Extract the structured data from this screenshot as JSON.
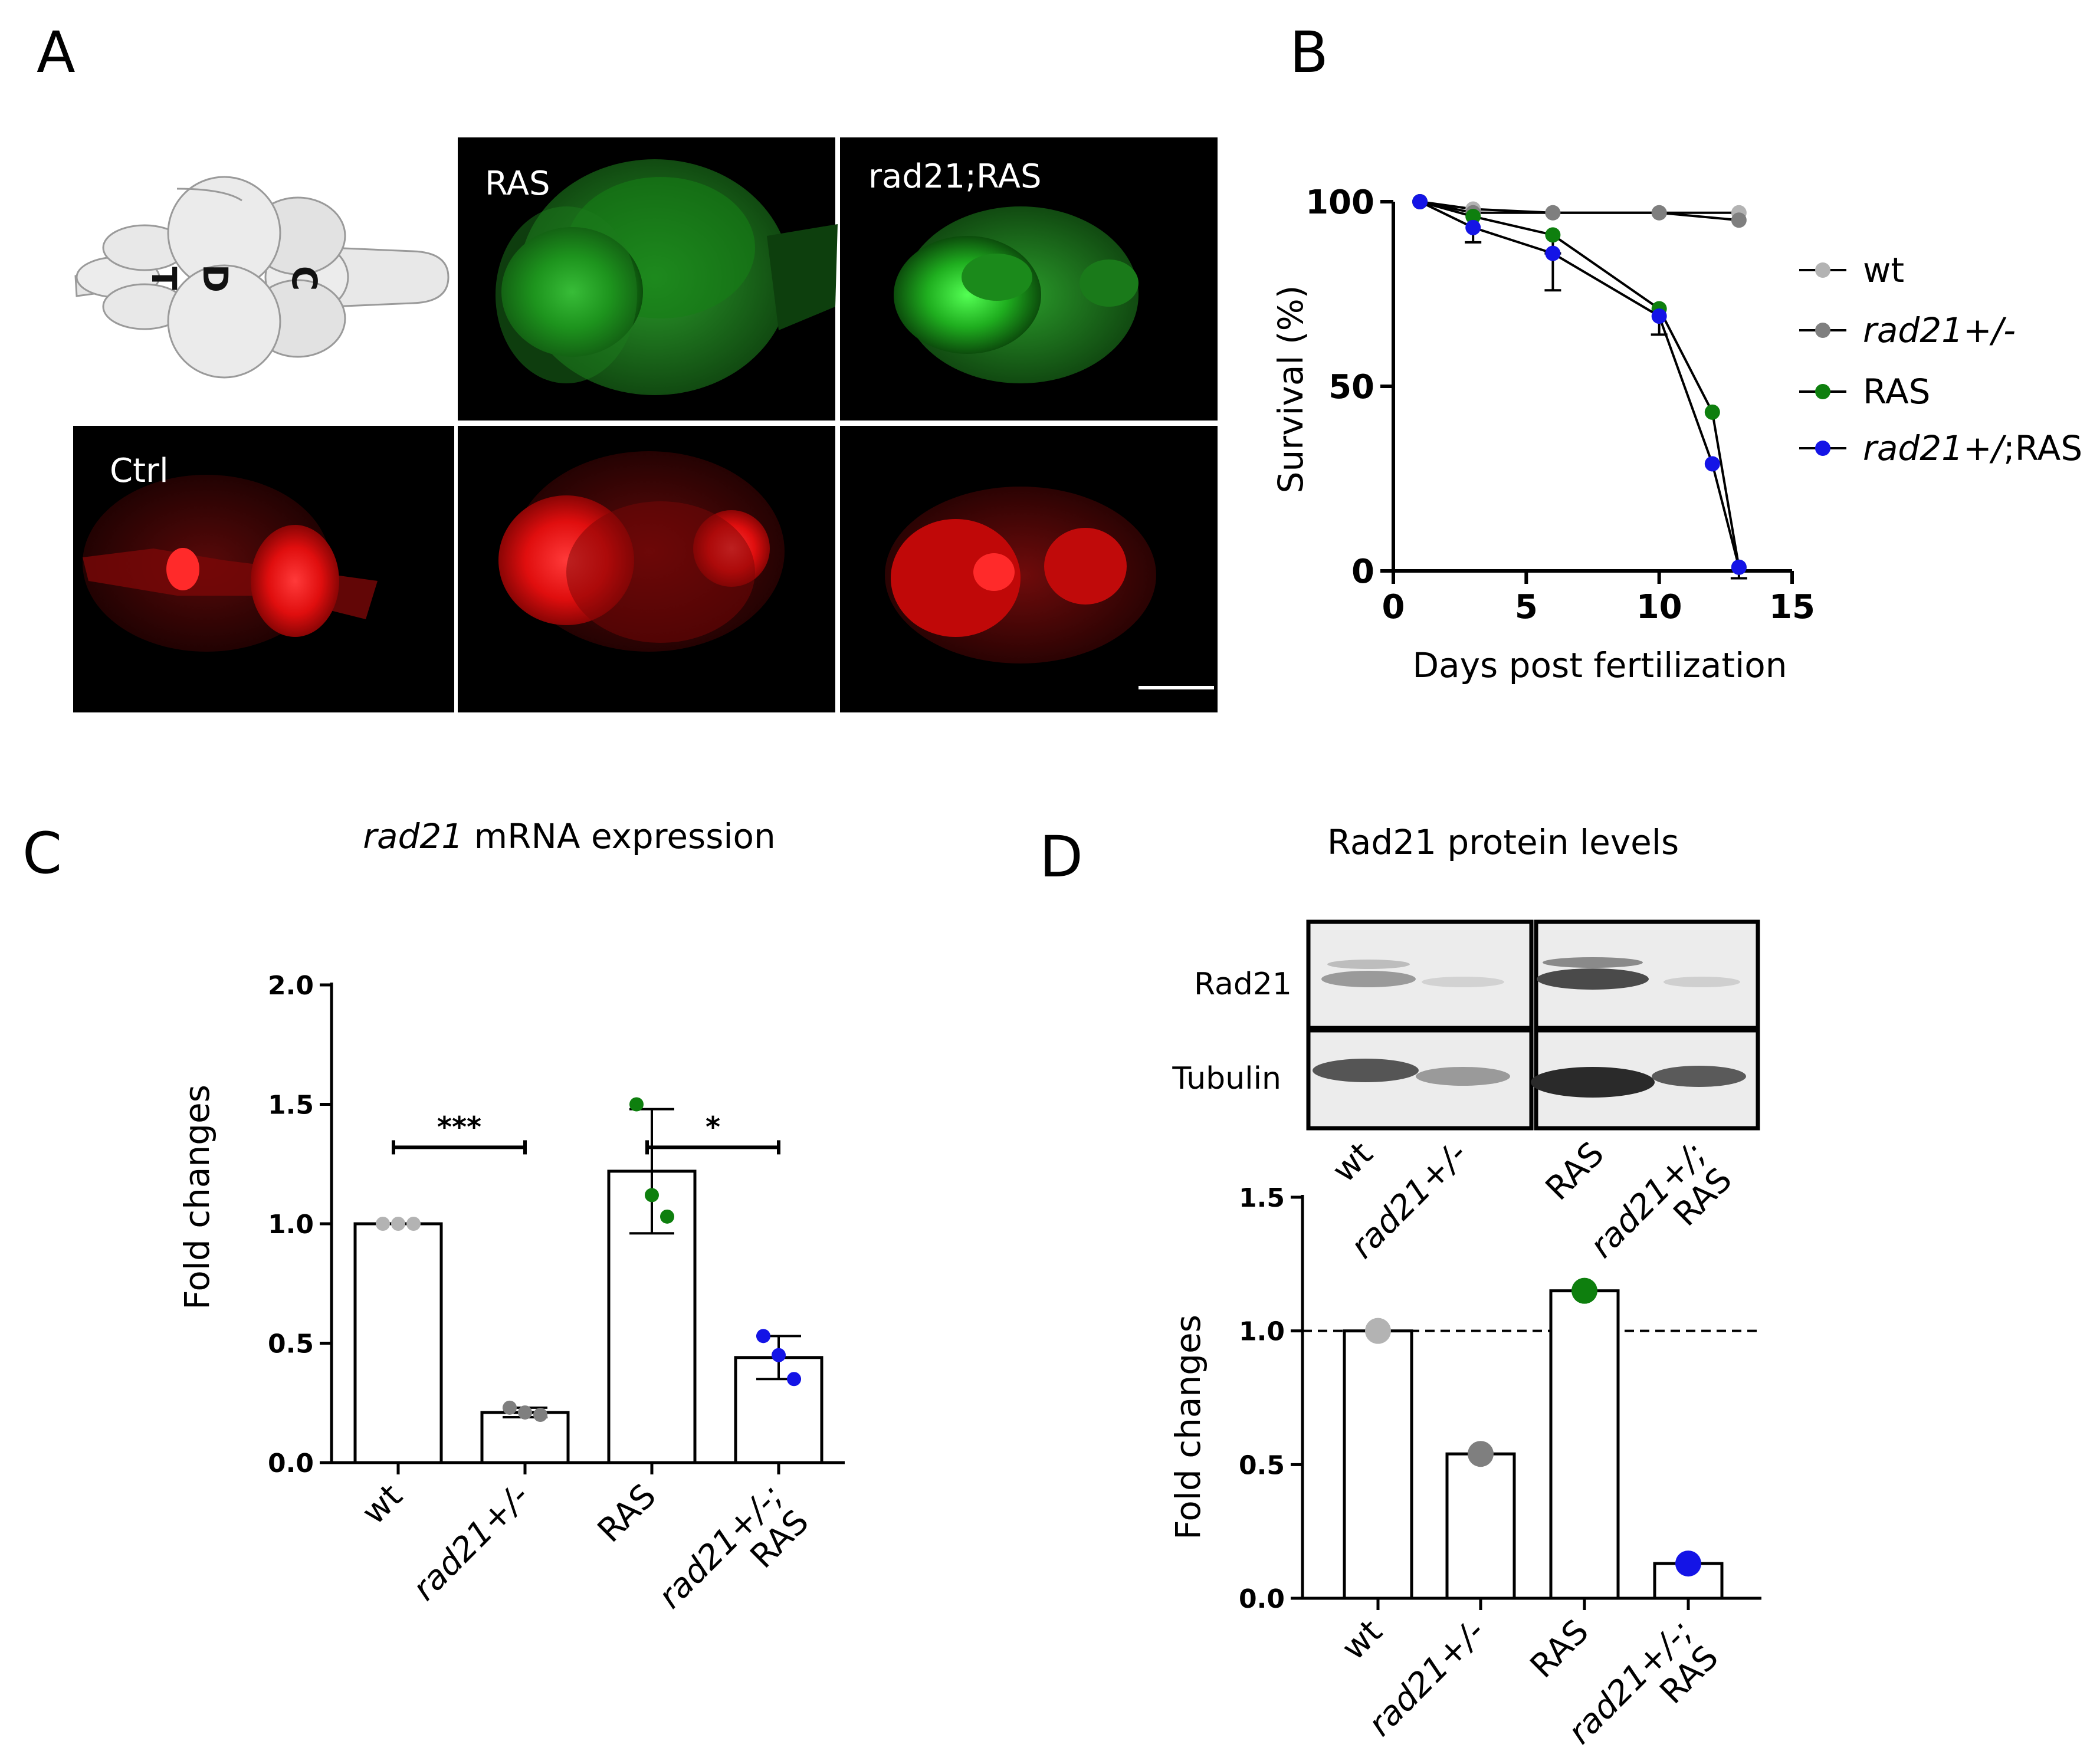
{
  "panels": {
    "a": {
      "letter": "A",
      "schematic_labels": [
        "T",
        "D",
        "C"
      ],
      "images": [
        "RAS",
        "rad21;RAS",
        "Ctrl"
      ]
    },
    "b": {
      "letter": "B"
    },
    "c": {
      "letter": "C",
      "title_italic": "rad21",
      "title_rest": " mRNA expression"
    },
    "d": {
      "letter": "D",
      "title": "Rad21 protein levels",
      "blot_labels": [
        "Rad21",
        "Tubulin"
      ]
    }
  },
  "colors": {
    "wt": "#b3b3b3",
    "rad21_het": "#7f7f7f",
    "ras": "#0e7f0e",
    "rad21_ras": "#1414e6",
    "green_fluor": "#2fbf2f",
    "red_fluor": "#e01010"
  },
  "chart_data": [
    {
      "panel": "B",
      "type": "line",
      "xlabel": "Days post fertilization",
      "ylabel": "Survival (%)",
      "xlim": [
        0,
        15
      ],
      "ylim": [
        0,
        100
      ],
      "xticks": [
        "0",
        "5",
        "10",
        "15"
      ],
      "yticks": [
        "0",
        "50",
        "100"
      ],
      "legend_position": "right",
      "series": [
        {
          "name": "wt",
          "color": "#b3b3b3",
          "x": [
            1,
            3,
            6,
            10,
            13
          ],
          "y": [
            100,
            98,
            97,
            97,
            97
          ]
        },
        {
          "name": "rad21+/-",
          "color": "#7f7f7f",
          "italic": true,
          "x": [
            1,
            3,
            6,
            10,
            13
          ],
          "y": [
            100,
            97,
            97,
            97,
            95
          ]
        },
        {
          "name": "RAS",
          "color": "#0e7f0e",
          "x": [
            1,
            3,
            6,
            10,
            12,
            13
          ],
          "y": [
            100,
            96,
            91,
            71,
            43,
            1
          ],
          "err": [
            0,
            0,
            5,
            0,
            0,
            3
          ]
        },
        {
          "name": "rad21+/;RAS",
          "italic_part": "rad21+/",
          "plain_part": ";RAS",
          "color": "#1414e6",
          "x": [
            1,
            3,
            6,
            10,
            12,
            13
          ],
          "y": [
            100,
            93,
            86,
            69,
            29,
            1
          ],
          "err": [
            0,
            4,
            10,
            5,
            0,
            0
          ]
        }
      ]
    },
    {
      "panel": "C",
      "type": "bar",
      "ylabel": "Fold changes",
      "ylim": [
        0,
        2.0
      ],
      "yticks": [
        "0.0",
        "0.5",
        "1.0",
        "1.5",
        "2.0"
      ],
      "categories": [
        "wt",
        "rad21+/-",
        "RAS",
        "rad21+/-;\nRAS"
      ],
      "values": [
        1.0,
        0.21,
        1.22,
        0.44
      ],
      "sd": [
        0,
        0.02,
        0.26,
        0.09
      ],
      "points": [
        [
          1.0,
          1.0,
          1.0
        ],
        [
          0.23,
          0.21,
          0.2
        ],
        [
          1.5,
          1.12,
          1.03
        ],
        [
          0.53,
          0.45,
          0.35
        ]
      ],
      "point_colors": [
        "#b3b3b3",
        "#7f7f7f",
        "#0e7f0e",
        "#1414e6"
      ],
      "significance": [
        {
          "from": 0,
          "to": 1,
          "label": "***"
        },
        {
          "from": 2,
          "to": 3,
          "label": "*"
        }
      ]
    },
    {
      "panel": "D",
      "type": "bar",
      "ylabel": "Fold changes",
      "ylim": [
        0,
        1.5
      ],
      "yticks": [
        "0.0",
        "0.5",
        "1.0",
        "1.5"
      ],
      "reference_line": 1.0,
      "categories": [
        "wt",
        "rad21+/-",
        "RAS",
        "rad21+/-;\nRAS"
      ],
      "values": [
        1.0,
        0.54,
        1.15,
        0.13
      ],
      "point_colors": [
        "#b3b3b3",
        "#7f7f7f",
        "#0e7f0e",
        "#1414e6"
      ],
      "blot_lanes": [
        "wt",
        "rad21+/-",
        "RAS",
        "rad21+/;\nRAS"
      ]
    }
  ]
}
